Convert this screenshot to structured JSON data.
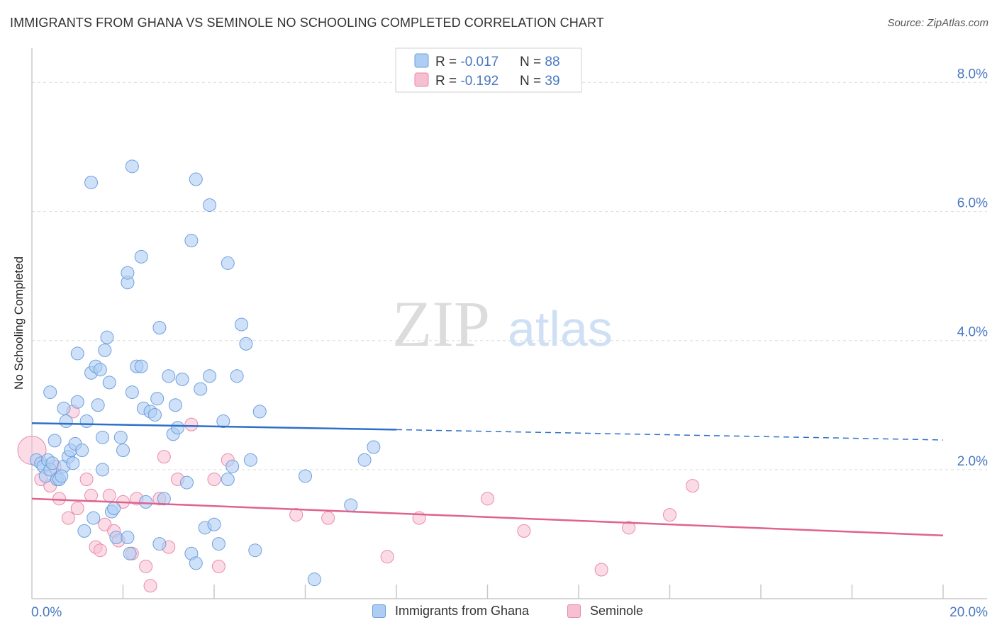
{
  "title": "IMMIGRANTS FROM GHANA VS SEMINOLE NO SCHOOLING COMPLETED CORRELATION CHART",
  "source": "Source: ZipAtlas.com",
  "watermark": {
    "zip": "ZIP",
    "atlas": "atlas"
  },
  "colors": {
    "ghana_fill": "#aecdf3",
    "ghana_stroke": "#6e9fdc",
    "ghana_line": "#2d6fc9",
    "seminole_fill": "#f7bfd2",
    "seminole_stroke": "#e88aaa",
    "seminole_line": "#e0628e",
    "axis_text": "#4a78c2",
    "grid": "#dddddd"
  },
  "stats_legend": [
    {
      "r_label": "R = ",
      "r_value": "-0.017",
      "n_label": "N = ",
      "n_value": "88"
    },
    {
      "r_label": "R = ",
      "r_value": "-0.192",
      "n_label": "N = ",
      "n_value": "39"
    }
  ],
  "chart_data": {
    "type": "scatter",
    "title": "IMMIGRANTS FROM GHANA VS SEMINOLE NO SCHOOLING COMPLETED CORRELATION CHART",
    "xlabel": "",
    "ylabel": "No Schooling Completed",
    "xlim": [
      0,
      20
    ],
    "ylim": [
      0,
      8.4
    ],
    "x_tick_labels": [
      "0.0%",
      "20.0%"
    ],
    "y_ticks": [
      2,
      4,
      6,
      8
    ],
    "y_tick_labels": [
      "2.0%",
      "4.0%",
      "6.0%",
      "8.0%"
    ],
    "grid": true,
    "legend_position": "bottom",
    "series": [
      {
        "name": "Immigrants from Ghana",
        "R": -0.017,
        "N": 88,
        "trend": {
          "x": [
            0,
            8,
            20
          ],
          "y": [
            2.72,
            2.62,
            2.46
          ],
          "solid_until": 8
        },
        "points": [
          [
            0.1,
            2.15
          ],
          [
            0.2,
            2.1
          ],
          [
            0.25,
            2.05
          ],
          [
            0.3,
            1.9
          ],
          [
            0.35,
            2.15
          ],
          [
            0.4,
            2.0
          ],
          [
            0.45,
            2.1
          ],
          [
            0.5,
            2.45
          ],
          [
            0.55,
            1.85
          ],
          [
            0.6,
            1.85
          ],
          [
            0.7,
            2.05
          ],
          [
            0.75,
            2.75
          ],
          [
            0.8,
            2.2
          ],
          [
            0.85,
            2.3
          ],
          [
            0.9,
            2.1
          ],
          [
            0.95,
            2.4
          ],
          [
            1.0,
            3.05
          ],
          [
            1.1,
            2.3
          ],
          [
            1.2,
            2.75
          ],
          [
            1.3,
            3.5
          ],
          [
            1.4,
            3.6
          ],
          [
            1.45,
            3.0
          ],
          [
            1.5,
            3.55
          ],
          [
            1.55,
            2.5
          ],
          [
            1.6,
            3.85
          ],
          [
            1.65,
            4.05
          ],
          [
            1.7,
            3.35
          ],
          [
            1.75,
            1.35
          ],
          [
            1.8,
            1.4
          ],
          [
            1.85,
            0.95
          ],
          [
            1.95,
            2.5
          ],
          [
            2.0,
            2.3
          ],
          [
            2.1,
            0.95
          ],
          [
            2.15,
            0.7
          ],
          [
            2.2,
            3.2
          ],
          [
            2.3,
            3.6
          ],
          [
            2.4,
            3.6
          ],
          [
            2.45,
            2.95
          ],
          [
            2.5,
            1.5
          ],
          [
            2.6,
            2.9
          ],
          [
            2.7,
            2.85
          ],
          [
            2.75,
            3.1
          ],
          [
            2.8,
            0.85
          ],
          [
            2.9,
            1.55
          ],
          [
            3.0,
            3.45
          ],
          [
            3.1,
            2.55
          ],
          [
            3.15,
            3.0
          ],
          [
            3.2,
            2.65
          ],
          [
            3.3,
            3.4
          ],
          [
            3.4,
            1.8
          ],
          [
            3.5,
            0.7
          ],
          [
            3.6,
            0.55
          ],
          [
            3.7,
            3.25
          ],
          [
            3.8,
            1.1
          ],
          [
            3.9,
            3.45
          ],
          [
            4.0,
            1.15
          ],
          [
            4.1,
            0.85
          ],
          [
            4.2,
            2.75
          ],
          [
            4.3,
            1.85
          ],
          [
            4.4,
            2.05
          ],
          [
            4.5,
            3.45
          ],
          [
            4.6,
            4.25
          ],
          [
            4.7,
            3.95
          ],
          [
            4.8,
            2.15
          ],
          [
            4.9,
            0.75
          ],
          [
            5.0,
            2.9
          ],
          [
            6.0,
            1.9
          ],
          [
            7.0,
            1.45
          ],
          [
            7.3,
            2.15
          ],
          [
            7.5,
            2.35
          ],
          [
            6.2,
            0.3
          ],
          [
            0.4,
            3.2
          ],
          [
            0.7,
            2.95
          ],
          [
            1.0,
            3.8
          ],
          [
            1.3,
            6.45
          ],
          [
            2.1,
            4.9
          ],
          [
            2.1,
            5.05
          ],
          [
            2.2,
            6.7
          ],
          [
            2.4,
            5.3
          ],
          [
            2.8,
            4.2
          ],
          [
            3.5,
            5.55
          ],
          [
            3.6,
            6.5
          ],
          [
            3.9,
            6.1
          ],
          [
            4.3,
            5.2
          ],
          [
            0.65,
            1.9
          ],
          [
            1.15,
            1.05
          ],
          [
            1.35,
            1.25
          ],
          [
            1.55,
            2.0
          ]
        ]
      },
      {
        "name": "Seminole",
        "R": -0.192,
        "N": 39,
        "trend": {
          "x": [
            0,
            20
          ],
          "y": [
            1.55,
            0.98
          ]
        },
        "points": [
          [
            0.0,
            2.3
          ],
          [
            0.2,
            1.85
          ],
          [
            0.4,
            1.75
          ],
          [
            0.5,
            2.05
          ],
          [
            0.6,
            1.55
          ],
          [
            0.8,
            1.25
          ],
          [
            0.9,
            2.9
          ],
          [
            1.0,
            1.4
          ],
          [
            1.2,
            1.85
          ],
          [
            1.3,
            1.6
          ],
          [
            1.4,
            0.8
          ],
          [
            1.5,
            0.75
          ],
          [
            1.6,
            1.15
          ],
          [
            1.7,
            1.6
          ],
          [
            1.8,
            1.05
          ],
          [
            1.9,
            0.9
          ],
          [
            2.0,
            1.5
          ],
          [
            2.2,
            0.7
          ],
          [
            2.3,
            1.55
          ],
          [
            2.5,
            0.5
          ],
          [
            2.6,
            0.2
          ],
          [
            2.8,
            1.55
          ],
          [
            2.9,
            2.2
          ],
          [
            3.0,
            0.8
          ],
          [
            3.2,
            1.85
          ],
          [
            3.5,
            2.7
          ],
          [
            4.0,
            1.85
          ],
          [
            4.1,
            0.5
          ],
          [
            4.3,
            2.15
          ],
          [
            5.8,
            1.3
          ],
          [
            6.5,
            1.25
          ],
          [
            7.8,
            0.65
          ],
          [
            8.5,
            1.25
          ],
          [
            10.0,
            1.55
          ],
          [
            10.8,
            1.05
          ],
          [
            12.5,
            0.45
          ],
          [
            13.1,
            1.1
          ],
          [
            14.0,
            1.3
          ],
          [
            14.5,
            1.75
          ]
        ]
      }
    ]
  }
}
